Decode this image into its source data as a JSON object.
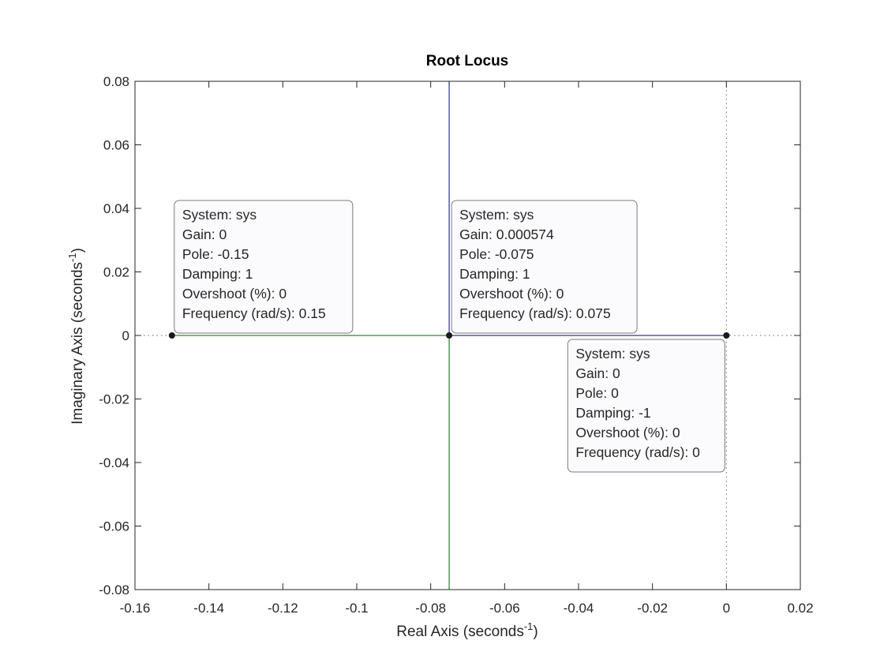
{
  "chart_data": {
    "type": "line",
    "title": "Root Locus",
    "xlabel": {
      "main": "Real Axis (seconds",
      "exp": "-1",
      "close": ")"
    },
    "ylabel": {
      "main": "Imaginary Axis (seconds",
      "exp": "-1",
      "close": ")"
    },
    "xlim": [
      -0.16,
      0.02
    ],
    "ylim": [
      -0.08,
      0.08
    ],
    "xticks": [
      -0.16,
      -0.14,
      -0.12,
      -0.1,
      -0.08,
      -0.06,
      -0.04,
      -0.02,
      0,
      0.02
    ],
    "xtick_labels": [
      "-0.16",
      "-0.14",
      "-0.12",
      "-0.1",
      "-0.08",
      "-0.06",
      "-0.04",
      "-0.02",
      "0",
      "0.02"
    ],
    "yticks": [
      -0.08,
      -0.06,
      -0.04,
      -0.02,
      0,
      0.02,
      0.04,
      0.06,
      0.08
    ],
    "ytick_labels": [
      "-0.08",
      "-0.06",
      "-0.04",
      "-0.02",
      "0",
      "0.02",
      "0.04",
      "0.06",
      "0.08"
    ],
    "grid": false,
    "series": [
      {
        "color": "#00008b",
        "points": [
          [
            0,
            0
          ],
          [
            -0.075,
            0
          ],
          [
            -0.075,
            0.08
          ]
        ]
      },
      {
        "color": "#006400",
        "points": [
          [
            -0.15,
            0
          ],
          [
            -0.075,
            0
          ],
          [
            -0.075,
            -0.08
          ]
        ]
      }
    ],
    "zero_lines": {
      "x": 0,
      "y": 0,
      "color": "#666666"
    },
    "markers": [
      {
        "x": -0.15,
        "y": 0
      },
      {
        "x": -0.075,
        "y": 0
      },
      {
        "x": 0,
        "y": 0
      }
    ],
    "datatips": [
      {
        "x": -0.15,
        "y": 0,
        "position": "upper-right",
        "lines": [
          "System: sys",
          "Gain: 0",
          "Pole: -0.15",
          "Damping: 1",
          "Overshoot (%): 0",
          "Frequency (rad/s): 0.15"
        ]
      },
      {
        "x": -0.075,
        "y": 0,
        "position": "upper-right",
        "lines": [
          "System: sys",
          "Gain: 0.000574",
          "Pole: -0.075",
          "Damping: 1",
          "Overshoot (%): 0",
          "Frequency (rad/s): 0.075"
        ]
      },
      {
        "x": 0,
        "y": 0,
        "position": "lower-left",
        "lines": [
          "System: sys",
          "Gain: 0",
          "Pole: 0",
          "Damping: -1",
          "Overshoot (%): 0",
          "Frequency (rad/s): 0"
        ]
      }
    ]
  }
}
